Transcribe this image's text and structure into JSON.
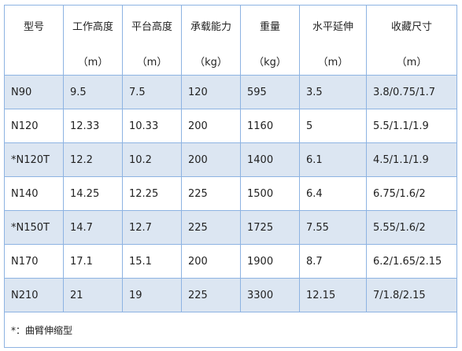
{
  "table": {
    "header": [
      {
        "name": "型号",
        "unit": null
      },
      {
        "name": "工作高度",
        "unit": "（m）"
      },
      {
        "name": "平台高度",
        "unit": "（m）"
      },
      {
        "name": "承载能力",
        "unit": "（kg）"
      },
      {
        "name": "重量",
        "unit": "（kg）"
      },
      {
        "name": "水平延伸",
        "unit": "（m）"
      },
      {
        "name": "收藏尺寸",
        "unit": "（m）"
      }
    ],
    "rows": [
      [
        "N90",
        "9.5",
        "7.5",
        "120",
        "595",
        "3.5",
        "3.8/0.75/1.7"
      ],
      [
        "N120",
        "12.33",
        "10.33",
        "200",
        "1160",
        "5",
        "5.5/1.1/1.9"
      ],
      [
        "*N120T",
        "12.2",
        "10.2",
        "200",
        "1400",
        "6.1",
        "4.5/1.1/1.9"
      ],
      [
        "N140",
        "14.25",
        "12.25",
        "225",
        "1500",
        "6.4",
        "6.75/1.6/2"
      ],
      [
        "*N150T",
        "14.7",
        "12.7",
        "225",
        "1725",
        "7.55",
        "5.55/1.6/2"
      ],
      [
        "N170",
        "17.1",
        "15.1",
        "200",
        "1900",
        "8.7",
        "6.2/1.65/2.15"
      ],
      [
        "N210",
        "21",
        "19",
        "225",
        "3300",
        "12.15",
        "7/1.8/2.15"
      ]
    ],
    "footnote": "*：曲臂伸缩型"
  }
}
